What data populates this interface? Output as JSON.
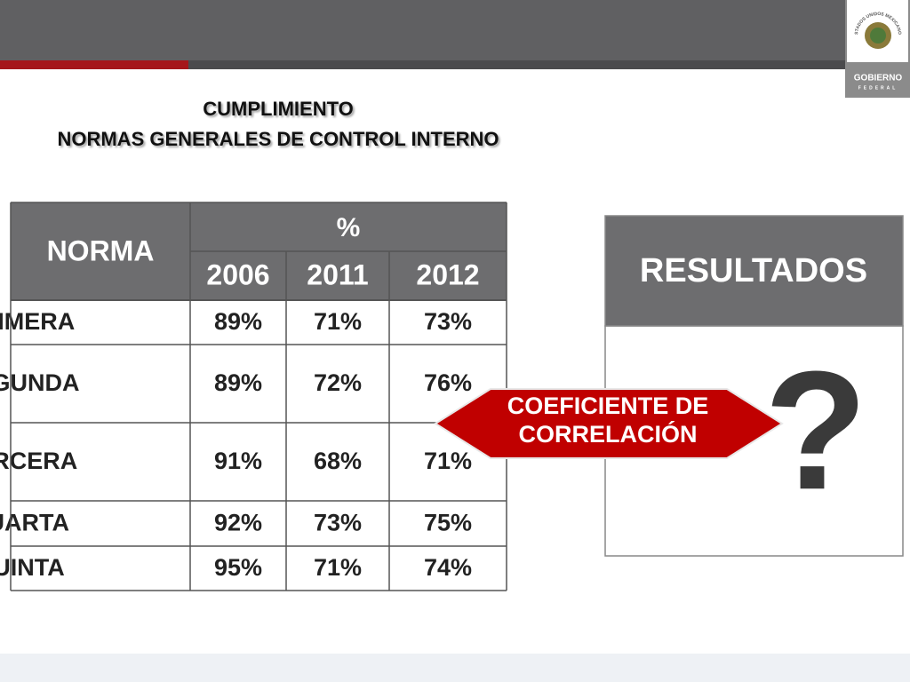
{
  "logo": {
    "seal_text": "ESTADOS UNIDOS MEXICANOS",
    "name": "GOBIERNO",
    "subname": "FEDERAL"
  },
  "title": [
    "CUMPLIMIENTO",
    "NORMAS GENERALES DE CONTROL INTERNO"
  ],
  "table": {
    "header": {
      "row_label": "NORMA",
      "group": "%",
      "columns": [
        "2006",
        "2011",
        "2012"
      ]
    },
    "rows": [
      [
        "PRIMERA",
        "89%",
        "71%",
        "73%"
      ],
      [
        "SEGUNDA",
        "89%",
        "72%",
        "76%"
      ],
      [
        "TERCERA",
        "91%",
        "68%",
        "71%"
      ],
      [
        "CUARTA",
        "92%",
        "73%",
        "75%"
      ],
      [
        "QUINTA",
        "95%",
        "71%",
        "74%"
      ]
    ]
  },
  "arrow": {
    "lines": [
      "COEFICIENTE DE",
      "CORRELACIÓN"
    ]
  },
  "results": {
    "header": "RESULTADOS",
    "body": "?"
  }
}
